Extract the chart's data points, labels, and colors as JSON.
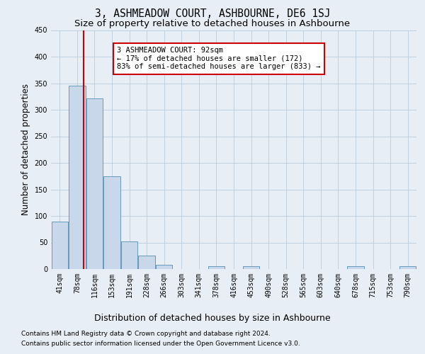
{
  "title": "3, ASHMEADOW COURT, ASHBOURNE, DE6 1SJ",
  "subtitle": "Size of property relative to detached houses in Ashbourne",
  "xlabel": "Distribution of detached houses by size in Ashbourne",
  "ylabel": "Number of detached properties",
  "bar_color": "#c8d8ea",
  "bar_edge_color": "#6699bb",
  "grid_color": "#bbccdd",
  "bg_color": "#e8eef5",
  "categories": [
    "41sqm",
    "78sqm",
    "116sqm",
    "153sqm",
    "191sqm",
    "228sqm",
    "266sqm",
    "303sqm",
    "341sqm",
    "378sqm",
    "416sqm",
    "453sqm",
    "490sqm",
    "528sqm",
    "565sqm",
    "603sqm",
    "640sqm",
    "678sqm",
    "715sqm",
    "753sqm",
    "790sqm"
  ],
  "values": [
    90,
    345,
    322,
    175,
    52,
    26,
    8,
    0,
    0,
    5,
    0,
    5,
    0,
    0,
    0,
    0,
    0,
    5,
    0,
    0,
    5
  ],
  "ylim": [
    0,
    450
  ],
  "yticks": [
    0,
    50,
    100,
    150,
    200,
    250,
    300,
    350,
    400,
    450
  ],
  "property_line_x": 1.37,
  "property_line_color": "#cc0000",
  "annotation_text": "3 ASHMEADOW COURT: 92sqm\n← 17% of detached houses are smaller (172)\n83% of semi-detached houses are larger (833) →",
  "annotation_box_color": "#ffffff",
  "annotation_box_edge": "#cc0000",
  "footer_line1": "Contains HM Land Registry data © Crown copyright and database right 2024.",
  "footer_line2": "Contains public sector information licensed under the Open Government Licence v3.0.",
  "title_fontsize": 10.5,
  "subtitle_fontsize": 9.5,
  "ylabel_fontsize": 8.5,
  "xlabel_fontsize": 9,
  "tick_fontsize": 7,
  "annotation_fontsize": 7.5,
  "footer_fontsize": 6.5
}
